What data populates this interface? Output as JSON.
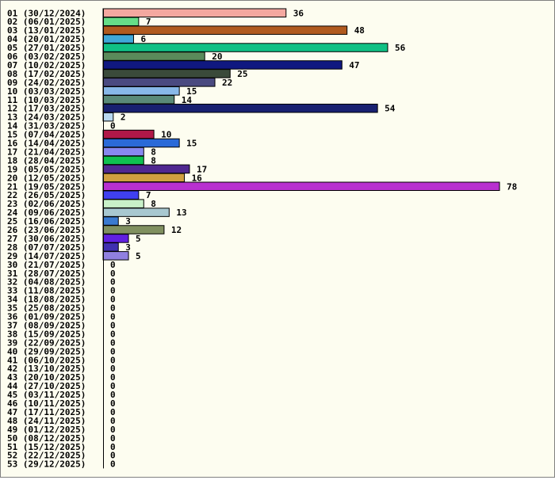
{
  "chart_data": {
    "type": "bar",
    "orientation": "horizontal",
    "title": "",
    "xlabel": "",
    "ylabel": "",
    "grid": false,
    "legend": "none",
    "categories": [
      "01 (30/12/2024)",
      "02 (06/01/2025)",
      "03 (13/01/2025)",
      "04 (20/01/2025)",
      "05 (27/01/2025)",
      "06 (03/02/2025)",
      "07 (10/02/2025)",
      "08 (17/02/2025)",
      "09 (24/02/2025)",
      "10 (03/03/2025)",
      "11 (10/03/2025)",
      "12 (17/03/2025)",
      "13 (24/03/2025)",
      "14 (31/03/2025)",
      "15 (07/04/2025)",
      "16 (14/04/2025)",
      "17 (21/04/2025)",
      "18 (28/04/2025)",
      "19 (05/05/2025)",
      "20 (12/05/2025)",
      "21 (19/05/2025)",
      "22 (26/05/2025)",
      "23 (02/06/2025)",
      "24 (09/06/2025)",
      "25 (16/06/2025)",
      "26 (23/06/2025)",
      "27 (30/06/2025)",
      "28 (07/07/2025)",
      "29 (14/07/2025)",
      "30 (21/07/2025)",
      "31 (28/07/2025)",
      "32 (04/08/2025)",
      "33 (11/08/2025)",
      "34 (18/08/2025)",
      "35 (25/08/2025)",
      "36 (01/09/2025)",
      "37 (08/09/2025)",
      "38 (15/09/2025)",
      "39 (22/09/2025)",
      "40 (29/09/2025)",
      "41 (06/10/2025)",
      "42 (13/10/2025)",
      "43 (20/10/2025)",
      "44 (27/10/2025)",
      "45 (03/11/2025)",
      "46 (10/11/2025)",
      "47 (17/11/2025)",
      "48 (24/11/2025)",
      "49 (01/12/2025)",
      "50 (08/12/2025)",
      "51 (15/12/2025)",
      "52 (22/12/2025)",
      "53 (29/12/2025)"
    ],
    "values": [
      36,
      7,
      48,
      6,
      56,
      20,
      47,
      25,
      22,
      15,
      14,
      54,
      2,
      0,
      10,
      15,
      8,
      8,
      17,
      16,
      78,
      7,
      8,
      13,
      3,
      12,
      5,
      3,
      5,
      0,
      0,
      0,
      0,
      0,
      0,
      0,
      0,
      0,
      0,
      0,
      0,
      0,
      0,
      0,
      0,
      0,
      0,
      0,
      0,
      0,
      0,
      0,
      0
    ],
    "colors": [
      "#f4a8a0",
      "#66dd88",
      "#b05a1e",
      "#3fa8d8",
      "#10c084",
      "#5a8a5a",
      "#101880",
      "#3a4a3a",
      "#4a4a80",
      "#88b8e8",
      "#5a8a78",
      "#182070",
      "#b8d8f0",
      "#ffffff",
      "#b01848",
      "#2a6ad8",
      "#8888f0",
      "#10c050",
      "#502890",
      "#d0a040",
      "#b830d0",
      "#4040f0",
      "#c8f0c8",
      "#a8c8d0",
      "#3a7ad0",
      "#809060",
      "#6020e0",
      "#4030b0",
      "#9080e0",
      "#ffffff",
      "#ffffff",
      "#ffffff",
      "#ffffff",
      "#ffffff",
      "#ffffff",
      "#ffffff",
      "#ffffff",
      "#ffffff",
      "#ffffff",
      "#ffffff",
      "#ffffff",
      "#ffffff",
      "#ffffff",
      "#ffffff",
      "#ffffff",
      "#ffffff",
      "#ffffff",
      "#ffffff",
      "#ffffff",
      "#ffffff",
      "#ffffff",
      "#ffffff",
      "#ffffff"
    ],
    "xlim": [
      0,
      78
    ]
  }
}
